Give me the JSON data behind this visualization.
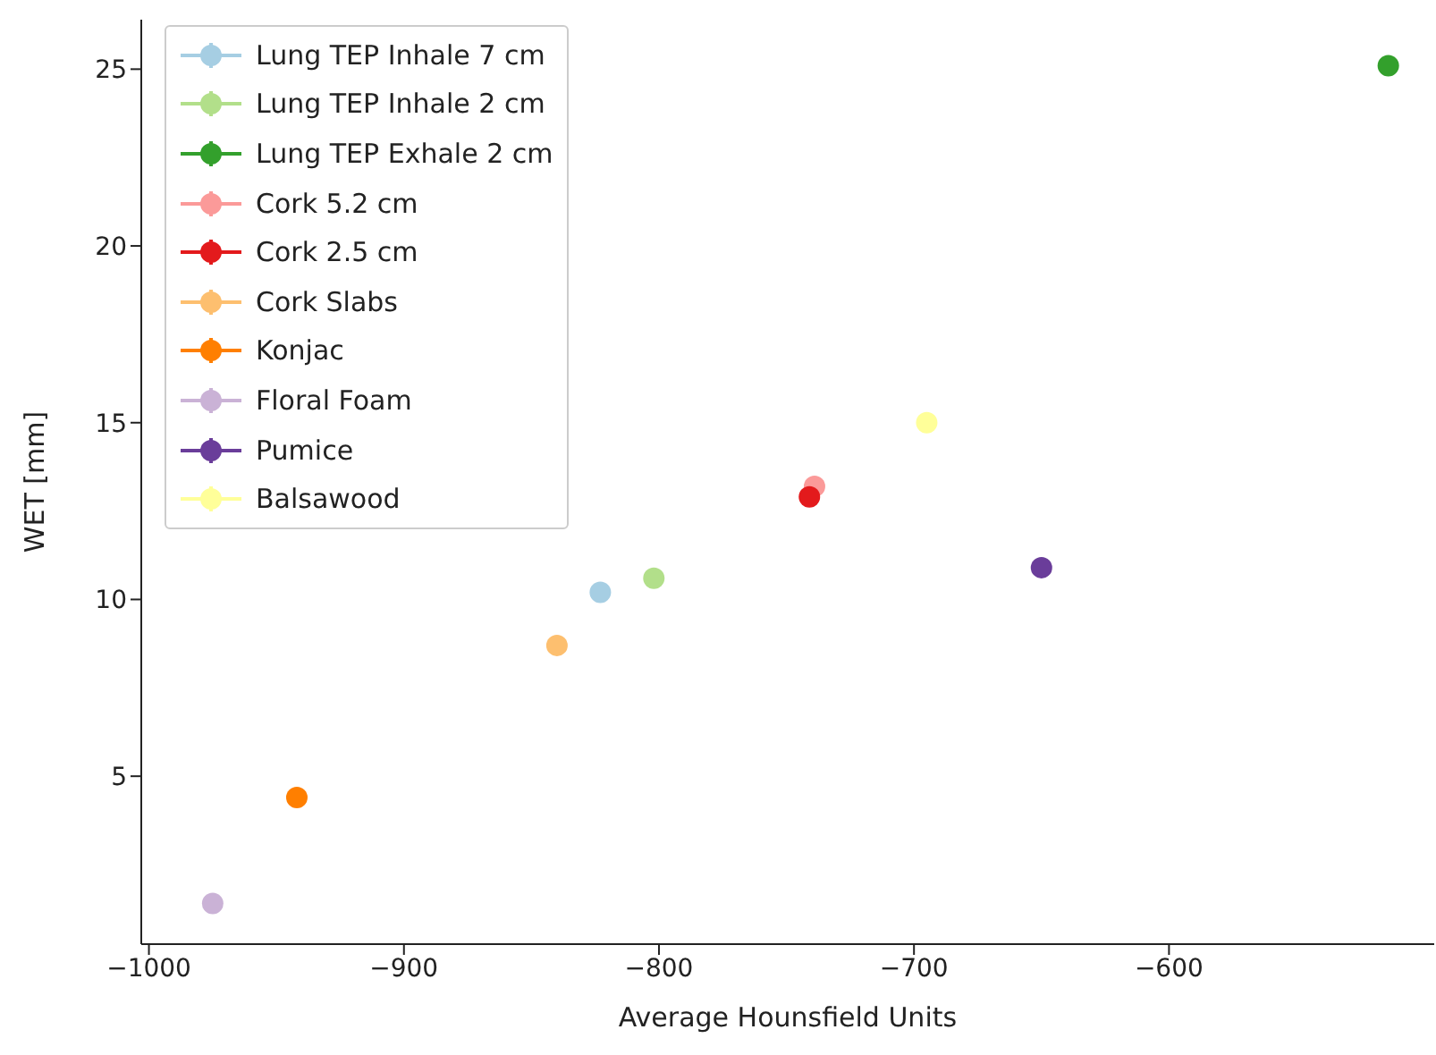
{
  "chart_data": {
    "type": "scatter",
    "xlabel": "Average Hounsfield Units",
    "ylabel": "WET [mm]",
    "xlim": [
      -1003,
      -496
    ],
    "ylim": [
      0.25,
      26.4
    ],
    "xticks": [
      -1000,
      -900,
      -800,
      -700,
      -600
    ],
    "yticks": [
      5,
      10,
      15,
      20,
      25
    ],
    "grid": false,
    "legend": "top left",
    "marker": "circle",
    "series": [
      {
        "name": "Lung TEP Inhale 7 cm",
        "color": "#a6cee3",
        "x": [
          -823
        ],
        "values": [
          10.2
        ]
      },
      {
        "name": "Lung TEP Inhale 2 cm",
        "color": "#b2df8a",
        "x": [
          -802
        ],
        "values": [
          10.6
        ]
      },
      {
        "name": "Lung TEP Exhale 2 cm",
        "color": "#33a02c",
        "x": [
          -514
        ],
        "values": [
          25.1
        ]
      },
      {
        "name": "Cork 5.2 cm",
        "color": "#fb9a99",
        "x": [
          -739
        ],
        "values": [
          13.2
        ]
      },
      {
        "name": "Cork 2.5 cm",
        "color": "#e31a1c",
        "x": [
          -741
        ],
        "values": [
          12.9
        ]
      },
      {
        "name": "Cork Slabs",
        "color": "#fdbf6f",
        "x": [
          -840
        ],
        "values": [
          8.7
        ]
      },
      {
        "name": "Konjac",
        "color": "#ff7f00",
        "x": [
          -942
        ],
        "values": [
          4.4
        ]
      },
      {
        "name": "Floral Foam",
        "color": "#cab2d6",
        "x": [
          -975
        ],
        "values": [
          1.4
        ]
      },
      {
        "name": "Pumice",
        "color": "#6a3d9a",
        "x": [
          -650
        ],
        "values": [
          10.9
        ]
      },
      {
        "name": "Balsawood",
        "color": "#ffff99",
        "x": [
          -695
        ],
        "values": [
          15.0
        ]
      }
    ]
  }
}
